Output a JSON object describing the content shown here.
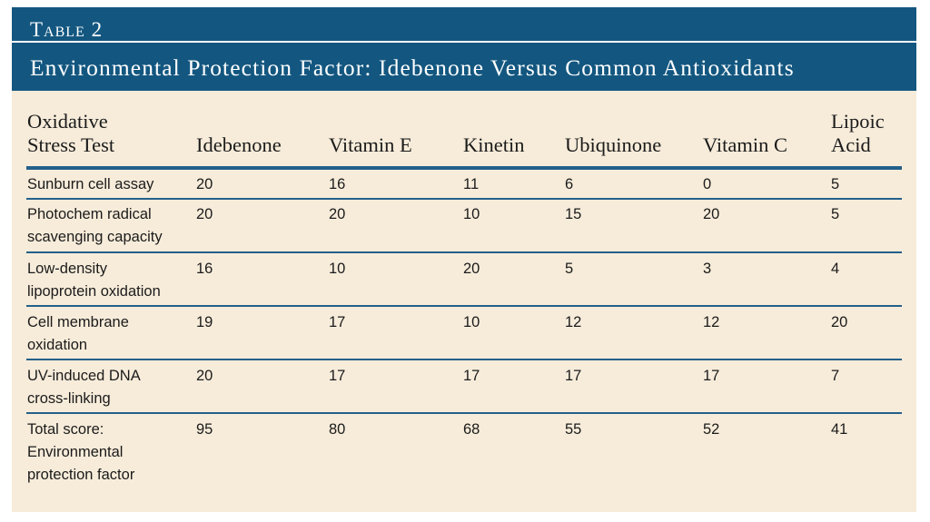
{
  "table": {
    "label": "Table 2",
    "title": "Environmental Protection Factor: Idebenone Versus Common Antioxidants",
    "columns": [
      "Oxidative\nStress Test",
      "Idebenone",
      "Vitamin E",
      "Kinetin",
      "Ubiquinone",
      "Vitamin C",
      "Lipoic\nAcid"
    ],
    "rows": [
      {
        "test": "Sunburn cell assay",
        "values": [
          "20",
          "16",
          "11",
          "6",
          "0",
          "5"
        ]
      },
      {
        "test": "Photochem radical\nscavenging capacity",
        "values": [
          "20",
          "20",
          "10",
          "15",
          "20",
          "5"
        ]
      },
      {
        "test": "Low-density\nlipoprotein oxidation",
        "values": [
          "16",
          "10",
          "20",
          "5",
          "3",
          "4"
        ]
      },
      {
        "test": "Cell membrane\noxidation",
        "values": [
          "19",
          "17",
          "10",
          "12",
          "12",
          "20"
        ]
      },
      {
        "test": "UV-induced DNA\ncross-linking",
        "values": [
          "20",
          "17",
          "17",
          "17",
          "17",
          "7"
        ]
      },
      {
        "test": "Total score:\nEnvironmental\nprotection factor",
        "values": [
          "95",
          "80",
          "68",
          "55",
          "52",
          "41"
        ]
      }
    ]
  }
}
